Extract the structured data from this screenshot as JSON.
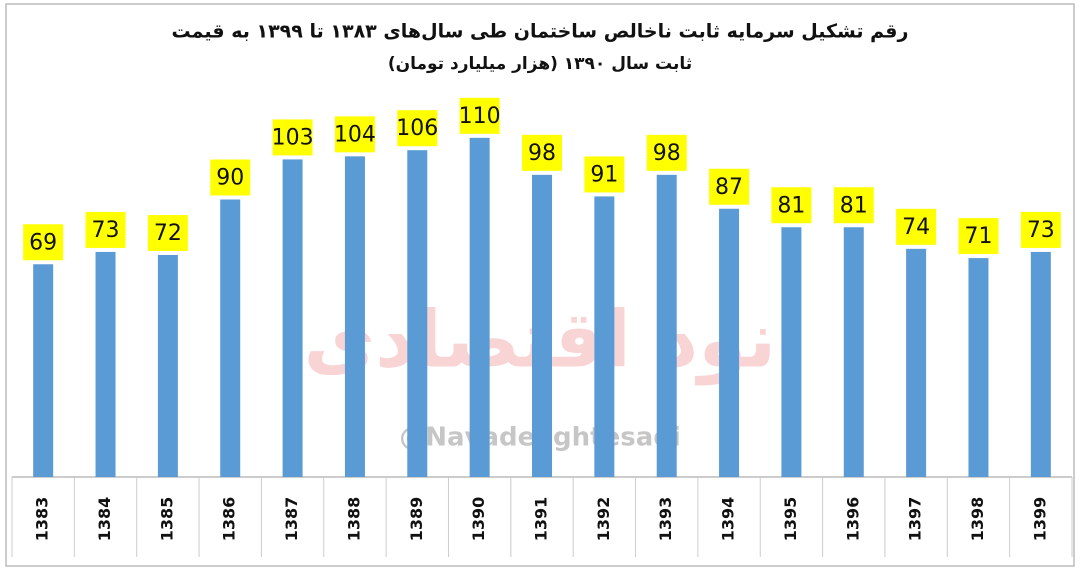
{
  "chart_data": {
    "type": "bar",
    "title": "رقم تشکیل سرمایه ثابت ناخالص ساختمان طی سال‌های ۱۳۸۳ تا ۱۳۹۹ به قیمت",
    "subtitle": "ثابت سال ۱۳۹۰  (هزار میلیارد تومان)",
    "watermark": {
      "logo": "نود اقتصادی",
      "handle": "@NavadeEghtesadi"
    },
    "categories": [
      "1383",
      "1384",
      "1385",
      "1386",
      "1387",
      "1388",
      "1389",
      "1390",
      "1391",
      "1392",
      "1393",
      "1394",
      "1395",
      "1396",
      "1397",
      "1398",
      "1399"
    ],
    "values": [
      69,
      73,
      72,
      90,
      103,
      104,
      106,
      110,
      98,
      91,
      98,
      87,
      81,
      81,
      74,
      71,
      73
    ],
    "color": "#5b9bd5",
    "label_background": "#ffff00",
    "ylim": [
      0,
      120
    ],
    "grid": false
  }
}
